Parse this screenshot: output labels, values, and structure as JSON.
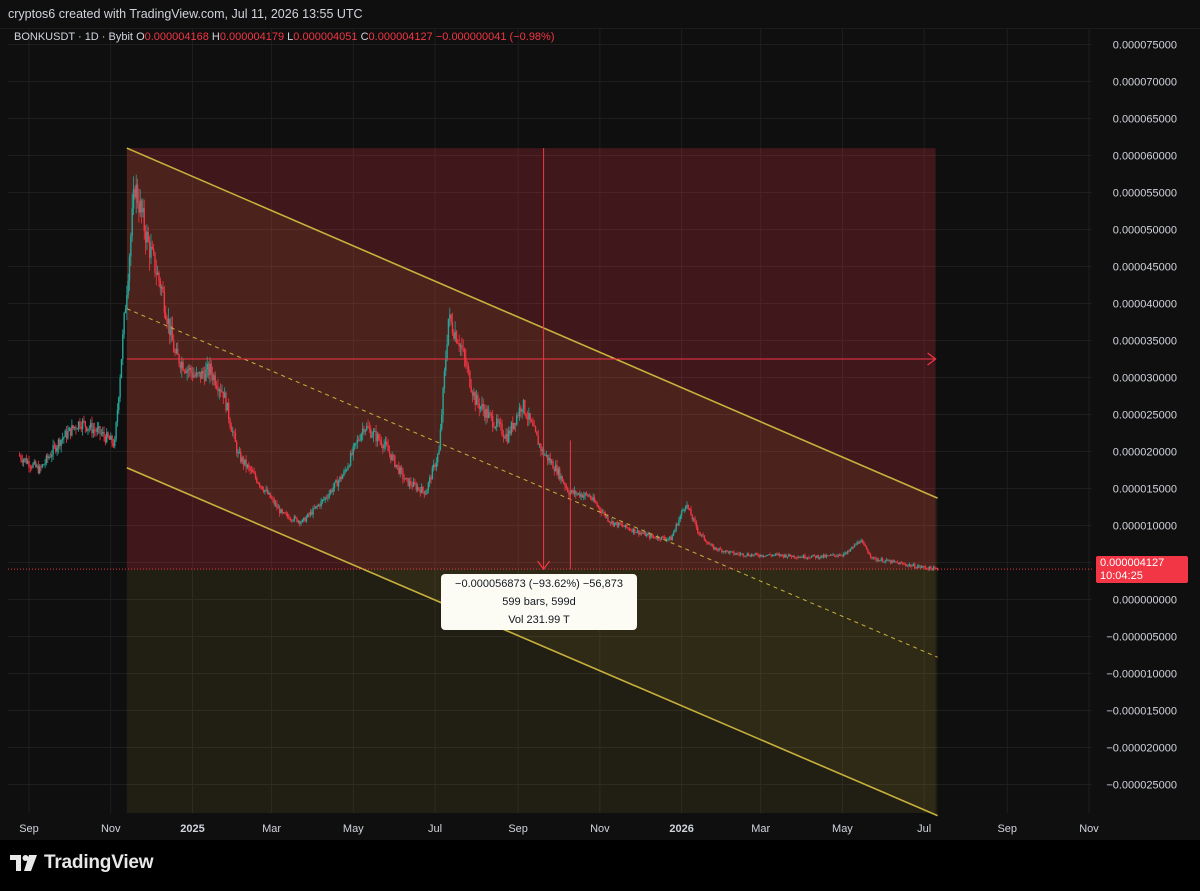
{
  "header": {
    "title": "cryptos6 created with TradingView.com, Jul 11, 2026 13:55 UTC"
  },
  "legend": {
    "symbol": "BONKUSDT · 1D · Bybit",
    "open_label": "O",
    "open": "0.000004168",
    "high_label": "H",
    "high": "0.000004179",
    "low_label": "L",
    "low": "0.000004051",
    "close_label": "C",
    "close": "0.000004127",
    "change": "−0.000000041 (−0.98%)"
  },
  "price_label": {
    "price": "0.000004127",
    "countdown": "10:04:25"
  },
  "measure": {
    "line1": "−0.000056873 (−93.62%) −56,873",
    "line2": "599 bars, 599d",
    "line3": "Vol 231.99 T"
  },
  "footer": {
    "brand": "TradingView"
  },
  "colors": {
    "up": "#26a69a",
    "down": "#f23645",
    "channel": "#c8b13c",
    "background": "#0f0f0f"
  },
  "chart_data": {
    "type": "candlestick",
    "title": "BONKUSDT · 1D · Bybit",
    "y_ticks": [
      "0.000075000",
      "0.000070000",
      "0.000065000",
      "0.000060000",
      "0.000055000",
      "0.000050000",
      "0.000045000",
      "0.000040000",
      "0.000035000",
      "0.000030000",
      "0.000025000",
      "0.000020000",
      "0.000015000",
      "0.000010000",
      "0.000005000",
      "0.000000000",
      "−0.000005000",
      "−0.000010000",
      "−0.000015000",
      "−0.000020000",
      "−0.000025000"
    ],
    "x_ticks": [
      "Sep",
      "Nov",
      "2025",
      "Mar",
      "May",
      "Jul",
      "Sep",
      "Nov",
      "2026",
      "Mar",
      "May",
      "Jul",
      "Sep",
      "Nov"
    ],
    "ylim": [
      -2.9e-05,
      7.7e-05
    ],
    "grid": true,
    "series": [
      {
        "kind": "price_path",
        "x": [
          "2024-08-25",
          "2024-09-10",
          "2024-09-25",
          "2024-10-10",
          "2024-10-25",
          "2024-11-05",
          "2024-11-13",
          "2024-11-20",
          "2024-11-30",
          "2024-12-10",
          "2024-12-20",
          "2025-01-05",
          "2025-01-15",
          "2025-01-25",
          "2025-02-05",
          "2025-02-20",
          "2025-03-10",
          "2025-03-25",
          "2025-04-10",
          "2025-04-25",
          "2025-05-10",
          "2025-05-25",
          "2025-06-10",
          "2025-06-25",
          "2025-07-05",
          "2025-07-12",
          "2025-07-20",
          "2025-08-01",
          "2025-08-10",
          "2025-08-25",
          "2025-09-05",
          "2025-09-20",
          "2025-10-01",
          "2025-10-10",
          "2025-10-25",
          "2025-11-10",
          "2025-11-25",
          "2025-12-10",
          "2025-12-25",
          "2026-01-05",
          "2026-01-15",
          "2026-01-25",
          "2026-02-10",
          "2026-02-25",
          "2026-03-15",
          "2026-04-01",
          "2026-04-20",
          "2026-05-05",
          "2026-05-15",
          "2026-05-25",
          "2026-06-10",
          "2026-06-25",
          "2026-07-11"
        ],
        "y": [
          1.95e-05,
          1.75e-05,
          2.15e-05,
          2.4e-05,
          2.25e-05,
          2.1e-05,
          4e-05,
          5.6e-05,
          4.8e-05,
          4.2e-05,
          3.3e-05,
          3e-05,
          3.1e-05,
          2.8e-05,
          1.95e-05,
          1.6e-05,
          1.15e-05,
          1.05e-05,
          1.35e-05,
          1.7e-05,
          2.35e-05,
          2.1e-05,
          1.6e-05,
          1.45e-05,
          2e-05,
          3.8e-05,
          3.5e-05,
          2.7e-05,
          2.5e-05,
          2.2e-05,
          2.65e-05,
          2e-05,
          1.75e-05,
          1.45e-05,
          1.4e-05,
          1.05e-05,
          9.5e-06,
          8.5e-06,
          8.2e-06,
          1.3e-05,
          9e-06,
          7e-06,
          6.2e-06,
          6e-06,
          6e-06,
          5.8e-06,
          5.8e-06,
          6.2e-06,
          8e-06,
          5.5e-06,
          5e-06,
          4.5e-06,
          4.1e-06
        ]
      }
    ],
    "annotations": {
      "measure_from": {
        "date": "2024-11-13",
        "price": 6.1e-05
      },
      "measure_to": {
        "date": "2026-07-11",
        "price": 4.1e-06
      },
      "channel_upper": [
        [
          "2024-11-13",
          6.1e-05
        ],
        [
          "2026-07-11",
          1.37e-05
        ]
      ],
      "channel_mid": [
        [
          "2024-11-13",
          3.93e-05
        ],
        [
          "2026-07-11",
          -7.8e-06
        ]
      ],
      "channel_lower": [
        [
          "2024-11-13",
          1.78e-05
        ],
        [
          "2026-07-11",
          -2.92e-05
        ]
      ],
      "horizontal_mid": 3.25e-05,
      "vertical_marker_date": "2025-09-20",
      "vertical_drop_date": "2025-10-10"
    }
  }
}
